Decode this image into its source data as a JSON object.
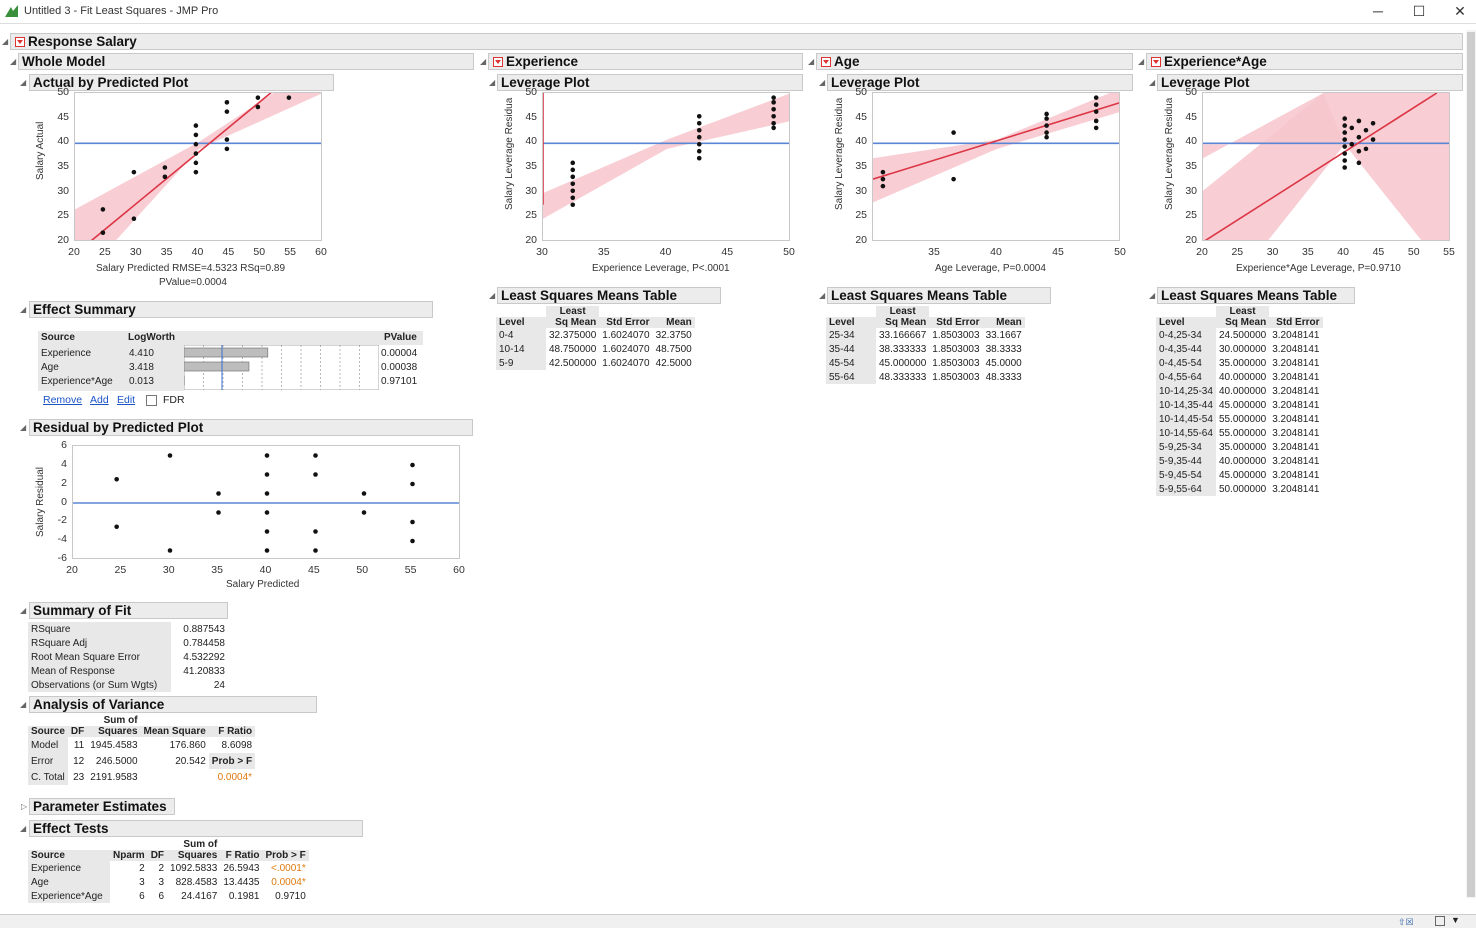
{
  "window": {
    "title": "Untitled 3 - Fit Least Squares - JMP Pro",
    "min": "─",
    "max": "☐",
    "close": "✕"
  },
  "colors": {
    "fit_line": "#dc3545",
    "conf_band": "#f7c6cc",
    "mean_line": "#5b86d6",
    "header_bg": "#ececec"
  },
  "response": {
    "title": "Response Salary"
  },
  "whole_model": {
    "title": "Whole Model"
  },
  "actual_by_predicted": {
    "title": "Actual by Predicted Plot",
    "ylabel": "Salary Actual",
    "xlabel": "Salary Predicted RMSE=4.5323 RSq=0.89",
    "xlabel2": "PValue=0.0004",
    "xticks": [
      "20",
      "25",
      "30",
      "35",
      "40",
      "45",
      "50",
      "55",
      "60"
    ],
    "yticks": [
      "50",
      "45",
      "40",
      "35",
      "30",
      "25",
      "20"
    ]
  },
  "effect_summary": {
    "title": "Effect Summary",
    "cols": [
      "Source",
      "LogWorth",
      "PValue"
    ],
    "rows": [
      {
        "source": "Experience",
        "logworth": "4.410",
        "pvalue": "0.00004"
      },
      {
        "source": "Age",
        "logworth": "3.418",
        "pvalue": "0.00038"
      },
      {
        "source": "Experience*Age",
        "logworth": "0.013",
        "pvalue": "0.97101"
      }
    ],
    "remove": "Remove",
    "add": "Add",
    "edit": "Edit",
    "fdr": "FDR"
  },
  "residual_plot": {
    "title": "Residual by Predicted Plot",
    "ylabel": "Salary Residual",
    "xlabel": "Salary Predicted",
    "xticks": [
      "20",
      "25",
      "30",
      "35",
      "40",
      "45",
      "50",
      "55",
      "60"
    ],
    "yticks": [
      "6",
      "4",
      "2",
      "0",
      "-2",
      "-4",
      "-6"
    ]
  },
  "summary_of_fit": {
    "title": "Summary of Fit",
    "rows": [
      [
        "RSquare",
        "0.887543"
      ],
      [
        "RSquare Adj",
        "0.784458"
      ],
      [
        "Root Mean Square Error",
        "4.532292"
      ],
      [
        "Mean of Response",
        "41.20833"
      ],
      [
        "Observations (or Sum Wgts)",
        "24"
      ]
    ]
  },
  "anova": {
    "title": "Analysis of Variance",
    "h_sumof": "Sum of",
    "cols": [
      "Source",
      "DF",
      "Squares",
      "Mean Square",
      "F Ratio"
    ],
    "rows": [
      [
        "Model",
        "11",
        "1945.4583",
        "176.860",
        "8.6098"
      ],
      [
        "Error",
        "12",
        "246.5000",
        "20.542",
        "Prob > F"
      ],
      [
        "C. Total",
        "23",
        "2191.9583",
        "",
        ""
      ]
    ],
    "prob": "0.0004*"
  },
  "param_estimates": {
    "title": "Parameter Estimates"
  },
  "effect_tests": {
    "title": "Effect Tests",
    "h_sumof": "Sum of",
    "cols": [
      "Source",
      "Nparm",
      "DF",
      "Squares",
      "F Ratio",
      "Prob > F"
    ],
    "rows": [
      [
        "Experience",
        "2",
        "2",
        "1092.5833",
        "26.5943",
        "<.0001*"
      ],
      [
        "Age",
        "3",
        "3",
        "828.4583",
        "13.4435",
        "0.0004*"
      ],
      [
        "Experience*Age",
        "6",
        "6",
        "24.4167",
        "0.1981",
        "0.9710"
      ]
    ]
  },
  "experience": {
    "title": "Experience",
    "leverage_title": "Leverage Plot",
    "ylabel": "Salary Leverage Residua",
    "xlabel": "Experience Leverage, P<.0001",
    "xticks": [
      "30",
      "35",
      "40",
      "45",
      "50"
    ],
    "yticks": [
      "50",
      "45",
      "40",
      "35",
      "30",
      "25",
      "20"
    ],
    "lsm": {
      "title": "Least Squares Means Table",
      "h_least": "Least",
      "cols": [
        "Level",
        "Sq Mean",
        "Std Error",
        "Mean"
      ],
      "rows": [
        [
          "0-4",
          "32.375000",
          "1.6024070",
          "32.3750"
        ],
        [
          "10-14",
          "48.750000",
          "1.6024070",
          "48.7500"
        ],
        [
          "5-9",
          "42.500000",
          "1.6024070",
          "42.5000"
        ]
      ]
    }
  },
  "age": {
    "title": "Age",
    "leverage_title": "Leverage Plot",
    "ylabel": "Salary Leverage Residua",
    "xlabel": "Age Leverage, P=0.0004",
    "xticks": [
      "35",
      "40",
      "45",
      "50"
    ],
    "yticks": [
      "50",
      "45",
      "40",
      "35",
      "30",
      "25",
      "20"
    ],
    "lsm": {
      "title": "Least Squares Means Table",
      "h_least": "Least",
      "cols": [
        "Level",
        "Sq Mean",
        "Std Error",
        "Mean"
      ],
      "rows": [
        [
          "25-34",
          "33.166667",
          "1.8503003",
          "33.1667"
        ],
        [
          "35-44",
          "38.333333",
          "1.8503003",
          "38.3333"
        ],
        [
          "45-54",
          "45.000000",
          "1.8503003",
          "45.0000"
        ],
        [
          "55-64",
          "48.333333",
          "1.8503003",
          "48.3333"
        ]
      ]
    }
  },
  "exp_age": {
    "title": "Experience*Age",
    "leverage_title": "Leverage Plot",
    "ylabel": "Salary Leverage Residua",
    "xlabel": "Experience*Age Leverage, P=0.9710",
    "xticks": [
      "20",
      "25",
      "30",
      "35",
      "40",
      "45",
      "50",
      "55"
    ],
    "yticks": [
      "50",
      "45",
      "40",
      "35",
      "30",
      "25",
      "20"
    ],
    "lsm": {
      "title": "Least Squares Means Table",
      "h_least": "Least",
      "cols": [
        "Level",
        "Sq Mean",
        "Std Error"
      ],
      "rows": [
        [
          "0-4,25-34",
          "24.500000",
          "3.2048141"
        ],
        [
          "0-4,35-44",
          "30.000000",
          "3.2048141"
        ],
        [
          "0-4,45-54",
          "35.000000",
          "3.2048141"
        ],
        [
          "0-4,55-64",
          "40.000000",
          "3.2048141"
        ],
        [
          "10-14,25-34",
          "40.000000",
          "3.2048141"
        ],
        [
          "10-14,35-44",
          "45.000000",
          "3.2048141"
        ],
        [
          "10-14,45-54",
          "55.000000",
          "3.2048141"
        ],
        [
          "10-14,55-64",
          "55.000000",
          "3.2048141"
        ],
        [
          "5-9,25-34",
          "35.000000",
          "3.2048141"
        ],
        [
          "5-9,35-44",
          "40.000000",
          "3.2048141"
        ],
        [
          "5-9,45-54",
          "45.000000",
          "3.2048141"
        ],
        [
          "5-9,55-64",
          "50.000000",
          "3.2048141"
        ]
      ]
    }
  }
}
